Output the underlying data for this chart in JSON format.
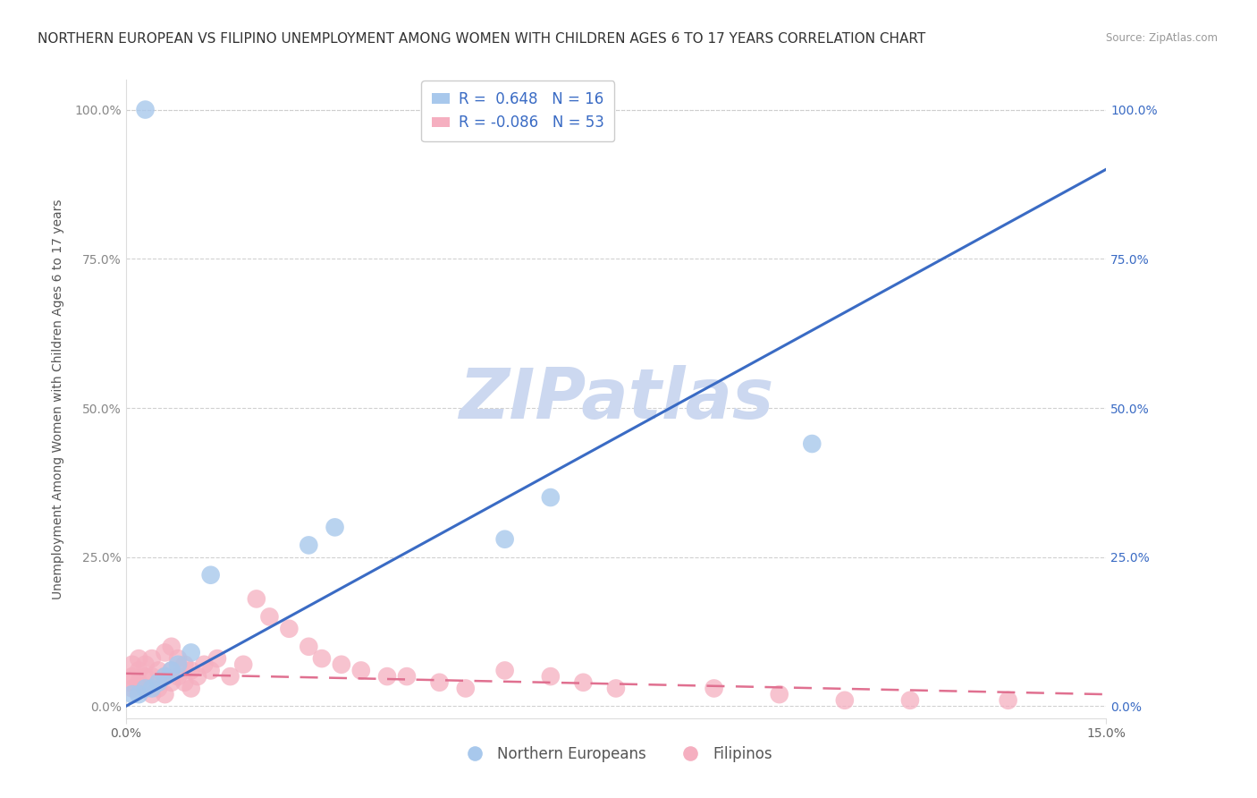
{
  "title": "NORTHERN EUROPEAN VS FILIPINO UNEMPLOYMENT AMONG WOMEN WITH CHILDREN AGES 6 TO 17 YEARS CORRELATION CHART",
  "source": "Source: ZipAtlas.com",
  "ylabel": "Unemployment Among Women with Children Ages 6 to 17 years",
  "xlim": [
    0.0,
    0.15
  ],
  "ylim": [
    -0.02,
    1.05
  ],
  "ytick_labels_left": [
    "0.0%",
    "25.0%",
    "50.0%",
    "75.0%",
    "100.0%"
  ],
  "ytick_labels_right": [
    "0.0%",
    "25.0%",
    "50.0%",
    "75.0%",
    "100.0%"
  ],
  "ytick_values": [
    0.0,
    0.25,
    0.5,
    0.75,
    1.0
  ],
  "blue_R": 0.648,
  "blue_N": 16,
  "pink_R": -0.086,
  "pink_N": 53,
  "blue_color": "#a8c8ec",
  "pink_color": "#f5afc0",
  "blue_line_color": "#3a6bc4",
  "pink_line_color": "#e07090",
  "watermark": "ZIPatlas",
  "watermark_color": "#ccd8f0",
  "legend_label_blue": "Northern Europeans",
  "legend_label_pink": "Filipinos",
  "background_color": "#ffffff",
  "grid_color": "#cccccc",
  "title_fontsize": 11,
  "axis_label_fontsize": 10,
  "tick_fontsize": 10,
  "blue_line_y0": 0.0,
  "blue_line_y1": 0.9,
  "pink_line_y0": 0.055,
  "pink_line_y1": 0.02,
  "blue_scatter_x": [
    0.001,
    0.002,
    0.003,
    0.004,
    0.005,
    0.006,
    0.007,
    0.008,
    0.01,
    0.013,
    0.028,
    0.032,
    0.058,
    0.065,
    0.105,
    0.003
  ],
  "blue_scatter_y": [
    0.02,
    0.02,
    0.03,
    0.03,
    0.04,
    0.05,
    0.06,
    0.07,
    0.09,
    0.22,
    0.27,
    0.3,
    0.28,
    0.35,
    0.44,
    1.0
  ],
  "pink_scatter_x": [
    0.0005,
    0.001,
    0.001,
    0.001,
    0.002,
    0.002,
    0.002,
    0.003,
    0.003,
    0.003,
    0.004,
    0.004,
    0.004,
    0.005,
    0.005,
    0.006,
    0.006,
    0.006,
    0.007,
    0.007,
    0.007,
    0.008,
    0.008,
    0.009,
    0.009,
    0.01,
    0.01,
    0.011,
    0.012,
    0.013,
    0.014,
    0.016,
    0.018,
    0.02,
    0.022,
    0.025,
    0.028,
    0.03,
    0.033,
    0.036,
    0.04,
    0.043,
    0.048,
    0.052,
    0.058,
    0.065,
    0.07,
    0.075,
    0.09,
    0.1,
    0.11,
    0.12,
    0.135
  ],
  "pink_scatter_y": [
    0.04,
    0.03,
    0.05,
    0.07,
    0.04,
    0.06,
    0.08,
    0.03,
    0.05,
    0.07,
    0.02,
    0.05,
    0.08,
    0.03,
    0.06,
    0.02,
    0.05,
    0.09,
    0.04,
    0.06,
    0.1,
    0.05,
    0.08,
    0.04,
    0.07,
    0.03,
    0.06,
    0.05,
    0.07,
    0.06,
    0.08,
    0.05,
    0.07,
    0.18,
    0.15,
    0.13,
    0.1,
    0.08,
    0.07,
    0.06,
    0.05,
    0.05,
    0.04,
    0.03,
    0.06,
    0.05,
    0.04,
    0.03,
    0.03,
    0.02,
    0.01,
    0.01,
    0.01
  ]
}
